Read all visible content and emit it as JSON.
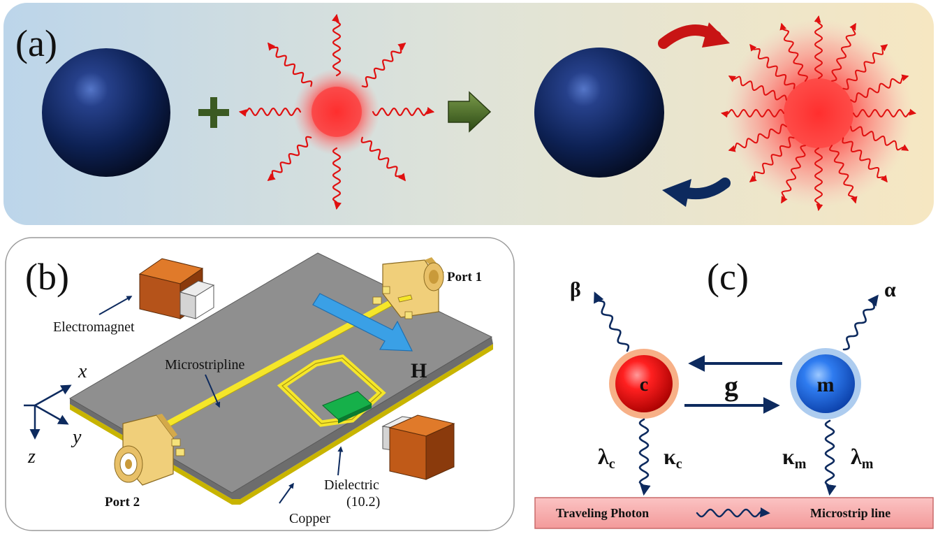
{
  "panel_a": {
    "label": "(a)"
  },
  "panel_b": {
    "label": "(b)",
    "port1": "Port 1",
    "port2": "Port 2",
    "electromagnet": "Electromagnet",
    "microstripline": "Microstripline",
    "field": "H",
    "dielectric": "Dielectric",
    "dielectric_value": "(10.2)",
    "copper": "Copper",
    "axis_x": "x",
    "axis_y": "y",
    "axis_z": "z"
  },
  "panel_c": {
    "label": "(c)",
    "beta": "β",
    "alpha": "α",
    "cavity_mode": "c",
    "magnon_mode": "m",
    "coupling": "g",
    "lambda": "λ",
    "kappa": "κ",
    "sub_c": "c",
    "sub_m": "m",
    "banner_left": "Traveling Photon",
    "banner_right": "Microstrip line"
  },
  "colors": {
    "navy": "#0d2a5e",
    "red": "#e01010",
    "yellow_line": "#f5e62a",
    "board": "#8f8f8f",
    "banner": "#f7a9a9",
    "field_arrow": "#3aa0e6"
  }
}
